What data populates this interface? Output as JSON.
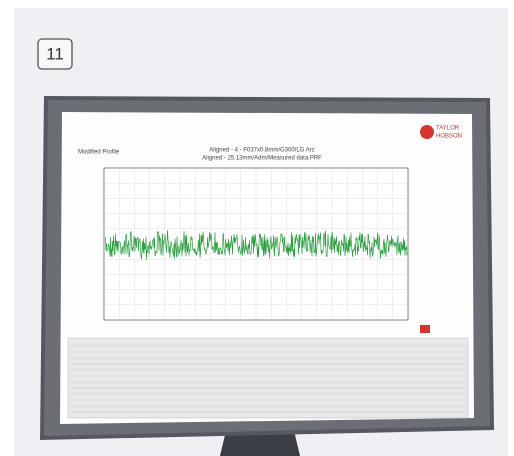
{
  "badge": "11",
  "screen": {
    "panel_title": "Modified Profile",
    "header_line_1": "Aligned - 4 - F037x0.8mm/G300/LG Arc",
    "header_line_2": "Aligned - 25.13mm/Adm/Measured data.PRF",
    "brand_line_1": "TAYLOR",
    "brand_line_2": "HOBSON"
  }
}
